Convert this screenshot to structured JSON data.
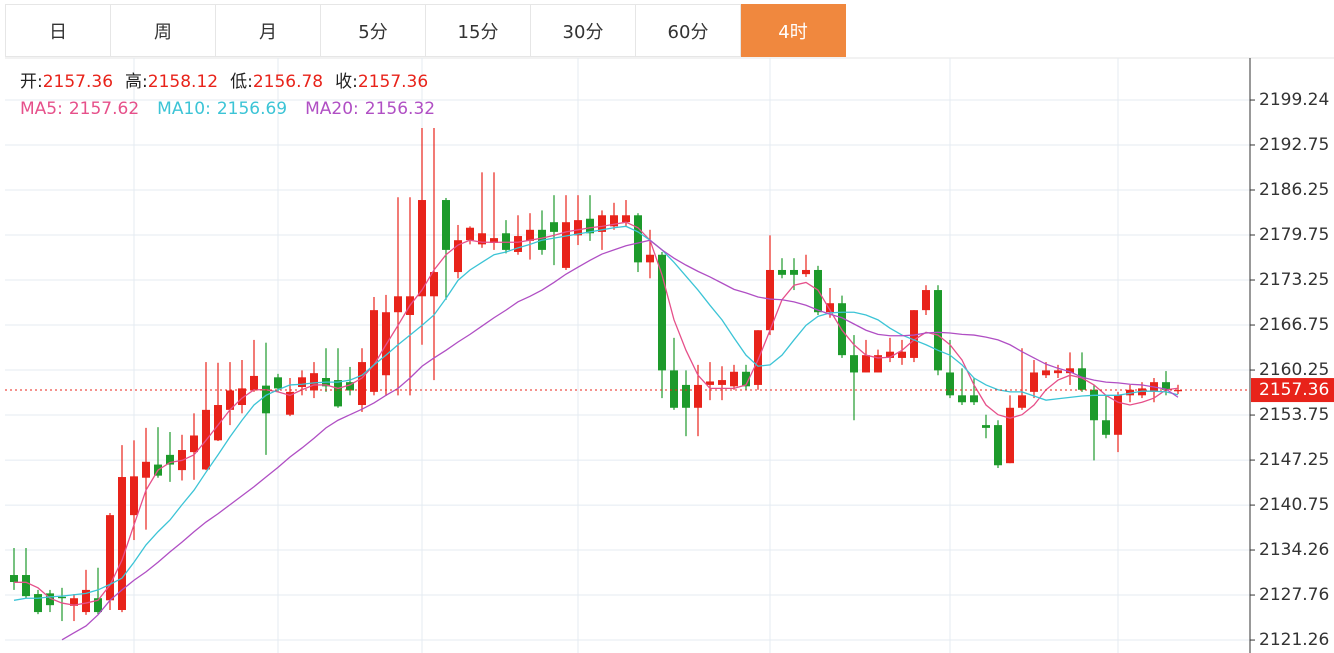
{
  "tabs": {
    "items": [
      "日",
      "周",
      "月",
      "5分",
      "15分",
      "30分",
      "60分",
      "4时"
    ],
    "active": 7
  },
  "chart_data": {
    "type": "candlestick",
    "ohlc_labels": [
      "开:",
      "高:",
      "低:",
      "收:"
    ],
    "up_color": "#e8231a",
    "down_color": "#1d9a2b",
    "ylim": [
      2119.39,
      2205.31
    ],
    "yticks": [
      2121.26,
      2127.76,
      2134.26,
      2140.75,
      2147.25,
      2153.75,
      2160.25,
      2166.75,
      2173.25,
      2179.75,
      2186.25,
      2192.75,
      2199.24
    ],
    "grid": true,
    "candles": {
      "open": [
        2130.65,
        2130.65,
        2127.9,
        2128.0,
        2127.5,
        2126.2,
        2125.3,
        2127.3,
        2127.0,
        2125.6,
        2139.3,
        2144.7,
        2146.6,
        2148.0,
        2145.8,
        2148.4,
        2145.9,
        2150.1,
        2154.5,
        2155.2,
        2157.3,
        2158.0,
        2159.2,
        2153.8,
        2157.8,
        2157.3,
        2159.1,
        2158.8,
        2158.5,
        2155.2,
        2157.1,
        2159.5,
        2168.6,
        2168.2,
        2170.9,
        2170.9,
        2184.8,
        2174.4,
        2179.0,
        2178.4,
        2178.6,
        2180.0,
        2177.3,
        2178.9,
        2180.5,
        2181.6,
        2175.0,
        2179.7,
        2182.1,
        2180.2,
        2181.0,
        2181.6,
        2182.6,
        2175.8,
        2176.9,
        2160.2,
        2158.1,
        2154.8,
        2158.1,
        2158.1,
        2157.9,
        2160.0,
        2158.1,
        2166.0,
        2174.7,
        2174.7,
        2174.1,
        2174.7,
        2168.6,
        2169.9,
        2162.4,
        2159.9,
        2159.9,
        2162.0,
        2162.0,
        2162.0,
        2168.9,
        2171.8,
        2159.9,
        2156.6,
        2156.6,
        2152.3,
        2152.3,
        2146.8,
        2154.8,
        2157.1,
        2159.5,
        2159.8,
        2159.8,
        2160.5,
        2157.4,
        2153.0,
        2150.9,
        2156.6,
        2156.6,
        2157.1,
        2158.5,
        2157.36
      ],
      "high": [
        2134.55,
        2134.55,
        2128.5,
        2128.5,
        2128.8,
        2127.9,
        2131.4,
        2131.7,
        2139.6,
        2149.4,
        2150.1,
        2151.9,
        2152.0,
        2151.3,
        2150.9,
        2154.0,
        2161.4,
        2161.3,
        2161.4,
        2161.7,
        2164.6,
        2164.2,
        2159.7,
        2159.1,
        2160.2,
        2161.4,
        2163.4,
        2163.4,
        2160.7,
        2163.4,
        2170.8,
        2171.1,
        2185.2,
        2185.2,
        2195.2,
        2195.2,
        2185.1,
        2181.2,
        2181.0,
        2188.8,
        2188.8,
        2181.9,
        2182.6,
        2182.9,
        2183.3,
        2185.5,
        2185.5,
        2185.5,
        2185.5,
        2183.3,
        2184.4,
        2184.8,
        2182.9,
        2180.5,
        2177.3,
        2164.9,
        2160.2,
        2161.0,
        2161.4,
        2160.8,
        2161.0,
        2161.0,
        2166.0,
        2179.7,
        2176.4,
        2176.4,
        2176.9,
        2175.3,
        2172.1,
        2171.0,
        2165.3,
        2164.6,
        2163.2,
        2164.9,
        2164.6,
        2168.9,
        2172.5,
        2172.5,
        2164.6,
        2160.5,
        2159.1,
        2153.8,
        2153.0,
        2156.6,
        2163.4,
        2161.7,
        2161.4,
        2161.0,
        2162.8,
        2162.8,
        2158.1,
        2156.6,
        2157.1,
        2158.1,
        2158.5,
        2159.1,
        2160.1,
        2158.12
      ],
      "low": [
        2128.5,
        2127.3,
        2125.0,
        2125.3,
        2124.0,
        2124.0,
        2124.9,
        2125.0,
        2125.6,
        2125.3,
        2135.7,
        2137.2,
        2144.7,
        2144.1,
        2144.3,
        2144.4,
        2145.8,
        2150.0,
        2152.3,
        2154.0,
        2157.1,
        2148.0,
        2157.1,
        2153.6,
        2156.6,
        2156.2,
        2157.1,
        2154.8,
        2156.6,
        2154.2,
        2156.6,
        2156.5,
        2156.6,
        2156.6,
        2163.9,
        2158.8,
        2170.4,
        2173.5,
        2178.4,
        2177.9,
        2177.6,
        2177.1,
        2176.9,
        2176.2,
        2176.9,
        2175.4,
        2174.7,
        2178.3,
        2178.9,
        2177.6,
        2180.5,
        2181.0,
        2174.4,
        2173.5,
        2156.2,
        2154.5,
        2150.7,
        2150.7,
        2155.9,
        2155.9,
        2157.4,
        2157.4,
        2157.4,
        2165.3,
        2173.5,
        2171.8,
        2173.7,
        2168.2,
        2167.8,
        2162.0,
        2153.0,
        2159.9,
        2159.9,
        2161.4,
        2161.0,
        2161.4,
        2168.2,
        2159.5,
        2156.2,
        2155.2,
        2155.2,
        2150.4,
        2146.1,
        2146.8,
        2154.5,
        2156.2,
        2159.1,
        2159.1,
        2158.1,
        2157.1,
        2147.2,
        2150.4,
        2148.4,
        2155.6,
        2156.2,
        2155.6,
        2156.6,
        2156.78
      ],
      "close": [
        2129.64,
        2127.6,
        2125.3,
        2126.3,
        2127.3,
        2127.3,
        2128.5,
        2125.3,
        2139.3,
        2144.8,
        2144.9,
        2147.0,
        2145.0,
        2146.6,
        2148.7,
        2150.8,
        2154.5,
        2155.2,
        2157.3,
        2157.6,
        2159.4,
        2154.0,
        2157.6,
        2157.1,
        2159.2,
        2159.8,
        2157.9,
        2155.0,
        2157.3,
        2161.4,
        2168.9,
        2168.6,
        2170.9,
        2170.9,
        2184.8,
        2174.4,
        2177.6,
        2179.0,
        2180.8,
        2180.0,
        2179.3,
        2177.6,
        2179.6,
        2180.5,
        2177.6,
        2180.2,
        2181.6,
        2181.9,
        2180.0,
        2182.6,
        2182.6,
        2182.6,
        2175.8,
        2176.9,
        2160.2,
        2154.8,
        2154.8,
        2158.1,
        2158.6,
        2158.8,
        2160.0,
        2157.9,
        2166.0,
        2174.7,
        2174.0,
        2174.0,
        2174.7,
        2168.6,
        2169.9,
        2162.4,
        2159.9,
        2162.4,
        2162.4,
        2162.9,
        2162.9,
        2168.9,
        2171.8,
        2160.2,
        2156.6,
        2155.6,
        2155.6,
        2151.9,
        2146.5,
        2154.8,
        2156.6,
        2159.9,
        2160.2,
        2160.2,
        2160.5,
        2157.4,
        2153.0,
        2150.9,
        2156.6,
        2157.4,
        2157.6,
        2158.5,
        2157.4,
        2157.36
      ]
    },
    "series": [
      {
        "name": "MA5:",
        "color": "#e6508a",
        "values": [
          2129.6,
          2129.6,
          2128.8,
          2127.3,
          2126.6,
          2126.3,
          2126.6,
          2127.0,
          2129.2,
          2132.8,
          2137.9,
          2142.9,
          2145.8,
          2146.9,
          2147.2,
          2148.0,
          2150.1,
          2152.3,
          2154.5,
          2156.2,
          2157.4,
          2157.4,
          2157.1,
          2156.6,
          2157.4,
          2158.1,
          2158.1,
          2157.6,
          2158.1,
          2159.1,
          2161.0,
          2163.9,
          2166.7,
          2169.6,
          2171.8,
          2174.7,
          2176.9,
          2178.3,
          2179.0,
          2178.7,
          2178.7,
          2178.7,
          2178.7,
          2179.0,
          2179.3,
          2179.7,
          2180.2,
          2180.5,
          2180.8,
          2181.0,
          2181.3,
          2181.6,
          2180.8,
          2179.0,
          2174.0,
          2167.5,
          2163.1,
          2159.5,
          2157.6,
          2157.6,
          2157.6,
          2158.1,
          2161.7,
          2166.0,
          2170.4,
          2172.5,
          2172.9,
          2171.8,
          2168.9,
          2166.0,
          2163.9,
          2162.4,
          2162.0,
          2162.1,
          2163.1,
          2164.6,
          2165.7,
          2165.3,
          2163.9,
          2161.7,
          2158.1,
          2155.2,
          2153.8,
          2153.3,
          2153.8,
          2155.2,
          2157.4,
          2158.8,
          2159.5,
          2159.1,
          2158.1,
          2156.6,
          2155.6,
          2155.2,
          2155.6,
          2156.2,
          2157.4,
          2157.62
        ]
      },
      {
        "name": "MA10:",
        "color": "#3cc4d6",
        "values": [
          2127.0,
          2127.3,
          2127.3,
          2127.5,
          2127.6,
          2127.8,
          2128.0,
          2128.5,
          2129.3,
          2130.2,
          2132.5,
          2135.0,
          2136.9,
          2138.6,
          2140.8,
          2142.9,
          2145.5,
          2148.0,
          2150.6,
          2153.0,
          2155.2,
          2156.6,
          2157.4,
          2158.1,
          2158.2,
          2158.4,
          2158.5,
          2158.5,
          2158.8,
          2159.5,
          2161.0,
          2162.4,
          2163.9,
          2165.3,
          2166.7,
          2168.2,
          2170.6,
          2173.2,
          2174.7,
          2175.8,
          2176.9,
          2177.3,
          2177.9,
          2178.4,
          2179.0,
          2179.3,
          2179.6,
          2179.9,
          2180.2,
          2180.5,
          2180.8,
          2181.0,
          2180.2,
          2179.0,
          2177.6,
          2175.8,
          2173.8,
          2171.8,
          2169.6,
          2167.5,
          2164.9,
          2162.4,
          2160.8,
          2161.0,
          2162.4,
          2164.6,
          2166.7,
          2168.0,
          2168.5,
          2168.6,
          2168.6,
          2168.2,
          2167.5,
          2166.3,
          2165.3,
          2164.6,
          2163.9,
          2163.1,
          2162.4,
          2161.0,
          2159.1,
          2158.1,
          2157.4,
          2157.1,
          2157.1,
          2156.5,
          2155.9,
          2156.1,
          2156.3,
          2156.5,
          2156.6,
          2156.6,
          2156.6,
          2156.9,
          2157.2,
          2157.2,
          2157.1,
          2156.69
        ]
      },
      {
        "name": "MA20:",
        "color": "#b04fc4",
        "values": [
          null,
          null,
          null,
          null,
          2121.3,
          2122.3,
          2123.3,
          2124.9,
          2127.0,
          2128.5,
          2129.9,
          2131.1,
          2132.5,
          2134.0,
          2135.4,
          2136.9,
          2138.3,
          2139.5,
          2140.8,
          2142.1,
          2143.4,
          2144.8,
          2146.2,
          2147.7,
          2149.0,
          2150.4,
          2151.9,
          2153.0,
          2153.8,
          2154.6,
          2155.5,
          2156.6,
          2157.6,
          2159.1,
          2160.8,
          2162.0,
          2163.1,
          2164.3,
          2165.4,
          2166.6,
          2167.8,
          2168.9,
          2170.1,
          2170.9,
          2171.8,
          2172.9,
          2174.1,
          2175.1,
          2176.1,
          2177.0,
          2177.6,
          2178.2,
          2178.6,
          2179.0,
          2177.6,
          2176.4,
          2175.4,
          2174.5,
          2173.7,
          2172.8,
          2171.9,
          2171.4,
          2170.8,
          2170.5,
          2170.4,
          2170.1,
          2169.6,
          2168.9,
          2168.3,
          2167.8,
          2166.9,
          2166.0,
          2165.4,
          2165.2,
          2165.2,
          2165.3,
          2165.6,
          2165.7,
          2165.6,
          2165.4,
          2165.3,
          2165.0,
          2164.6,
          2163.9,
          2162.9,
          2162.0,
          2161.1,
          2160.5,
          2160.0,
          2159.2,
          2158.8,
          2158.5,
          2158.4,
          2158.2,
          2158.1,
          2157.8,
          2157.5,
          2156.32
        ]
      }
    ]
  }
}
